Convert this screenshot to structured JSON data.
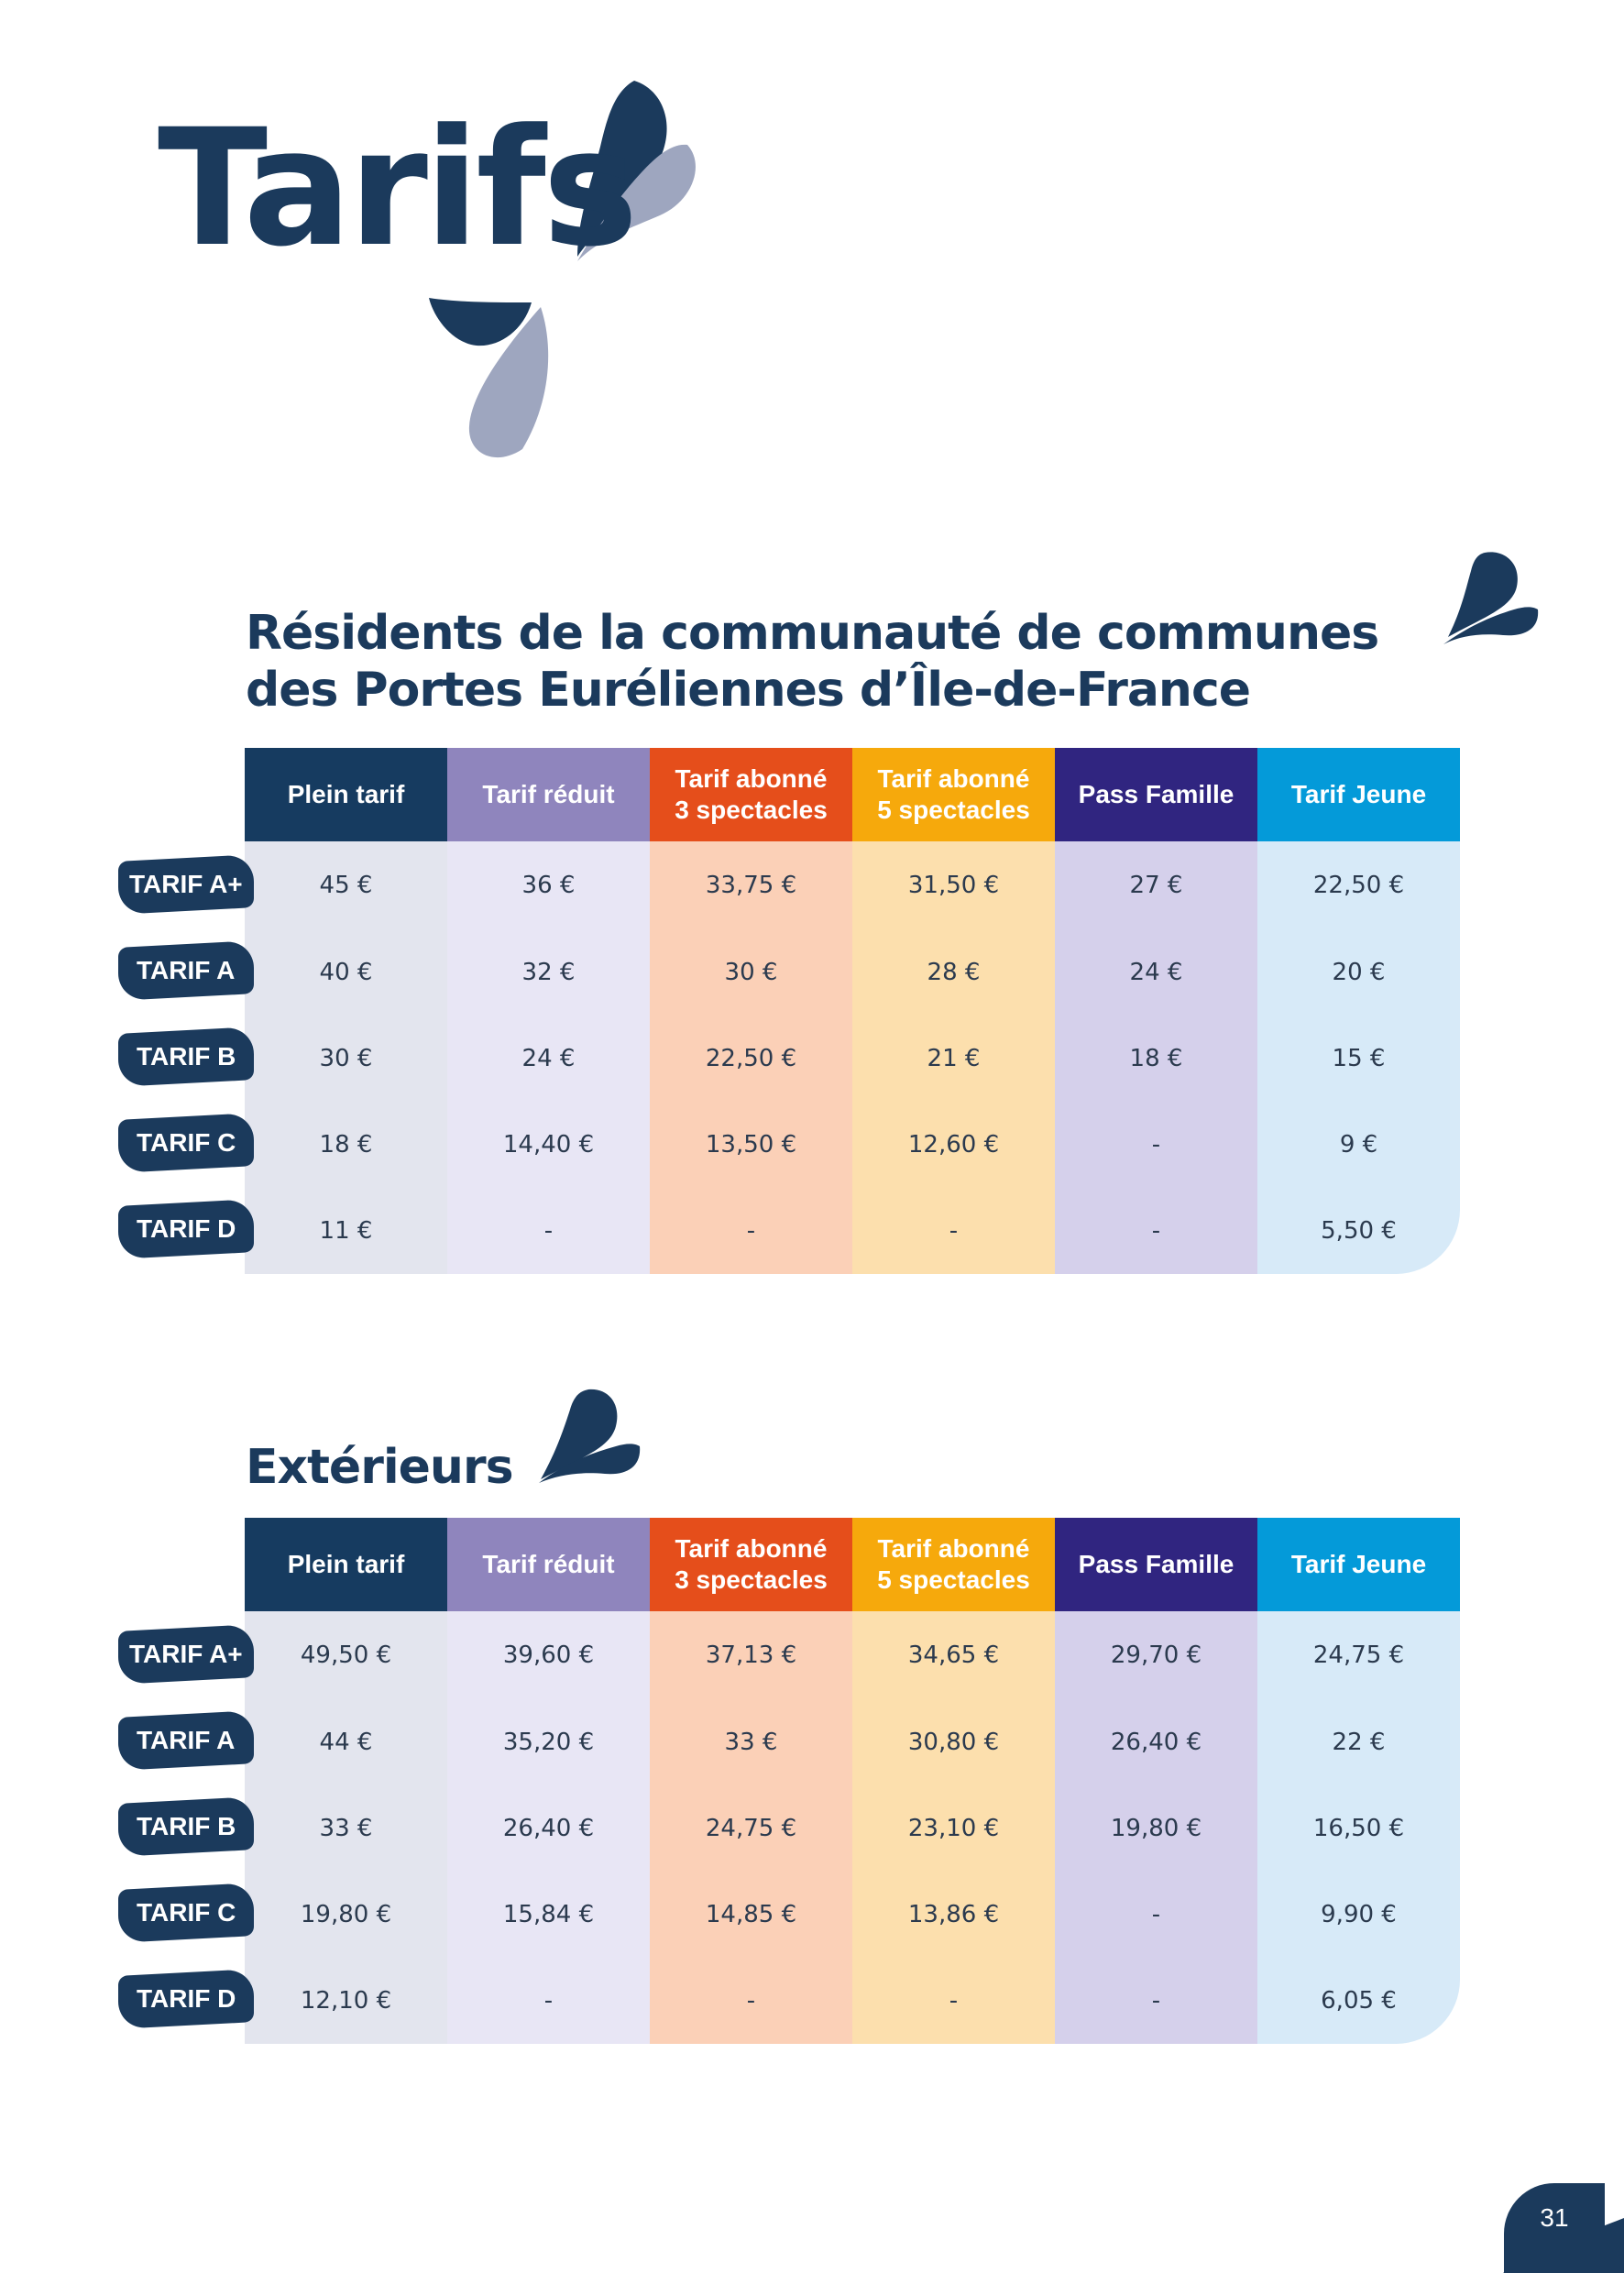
{
  "title": "Tarifs",
  "colors": {
    "navy": "#1b3a5c",
    "lavender_drop": "#9ea6bf",
    "col_plein": "#163b60",
    "col_reduit": "#8f85bd",
    "col_abonne3": "#e54e1b",
    "col_abonne5": "#f6a90c",
    "col_famille": "#302580",
    "col_jeune": "#049ad9",
    "bg_plein": "#e3e5ee",
    "bg_reduit": "#e8e6f5",
    "bg_abonne3": "#fbd0b7",
    "bg_abonne5": "#fcdfad",
    "bg_famille": "#d5d0eb",
    "bg_jeune": "#d7eaf8"
  },
  "columns": [
    {
      "label": "Plein tarif"
    },
    {
      "label": "Tarif réduit"
    },
    {
      "label": "Tarif abonné\n3 spectacles"
    },
    {
      "label": "Tarif abonné\n5 spectacles"
    },
    {
      "label": "Pass Famille"
    },
    {
      "label": "Tarif Jeune"
    }
  ],
  "row_labels": [
    "TARIF A+",
    "TARIF A",
    "TARIF B",
    "TARIF C",
    "TARIF D"
  ],
  "sections": [
    {
      "heading": "Résidents de la communauté de communes",
      "heading_line2": "des Portes Euréliennes d’Île-de-France",
      "rows": [
        [
          "45 €",
          "36 €",
          "33,75 €",
          "31,50 €",
          "27 €",
          "22,50 €"
        ],
        [
          "40 €",
          "32 €",
          "30 €",
          "28 €",
          "24 €",
          "20 €"
        ],
        [
          "30 €",
          "24 €",
          "22,50 €",
          "21 €",
          "18 €",
          "15 €"
        ],
        [
          "18 €",
          "14,40 €",
          "13,50 €",
          "12,60 €",
          "-",
          "9 €"
        ],
        [
          "11 €",
          "-",
          "-",
          "-",
          "-",
          "5,50 €"
        ]
      ]
    },
    {
      "heading": "Extérieurs",
      "rows": [
        [
          "49,50 €",
          "39,60 €",
          "37,13 €",
          "34,65 €",
          "29,70 €",
          "24,75 €"
        ],
        [
          "44 €",
          "35,20 €",
          "33 €",
          "30,80 €",
          "26,40 €",
          "22 €"
        ],
        [
          "33 €",
          "26,40 €",
          "24,75 €",
          "23,10 €",
          "19,80 €",
          "16,50 €"
        ],
        [
          "19,80 €",
          "15,84 €",
          "14,85 €",
          "13,86 €",
          "-",
          "9,90 €"
        ],
        [
          "12,10 €",
          "-",
          "-",
          "-",
          "-",
          "6,05 €"
        ]
      ]
    }
  ],
  "page_number": "31"
}
